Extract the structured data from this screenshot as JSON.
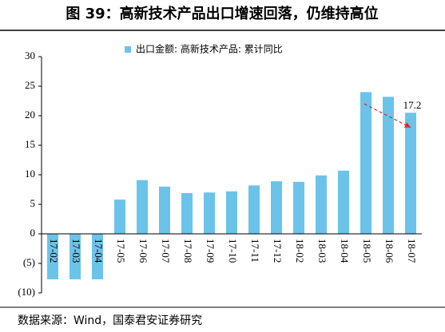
{
  "chart_data": {
    "type": "bar",
    "title": "图 39：高新技术产品出口增速回落，仍维持高位",
    "source": "数据来源：Wind，国泰君安证券研究",
    "categories": [
      "17-02",
      "17-03",
      "17-04",
      "17-05",
      "17-06",
      "17-07",
      "17-08",
      "17-09",
      "17-10",
      "17-11",
      "17-12",
      "18-02",
      "18-03",
      "18-04",
      "18-05",
      "18-06",
      "18-07"
    ],
    "series": [
      {
        "name": "出口金额: 高新技术产品: 累计同比",
        "color": "#6cc3ea",
        "values": [
          -7.7,
          -7.7,
          -7.7,
          5.8,
          9.1,
          8.0,
          6.9,
          7.0,
          7.2,
          8.2,
          8.9,
          8.8,
          9.9,
          10.7,
          24.0,
          23.2,
          20.5
        ]
      }
    ],
    "annotation": {
      "text": "17.2",
      "color": "#d9262c"
    },
    "ylim": [
      -10,
      30
    ],
    "yticks": [
      {
        "value": -10,
        "label": "(10)"
      },
      {
        "value": -5,
        "label": "(5)"
      },
      0,
      5,
      10,
      15,
      20,
      25,
      30
    ],
    "negative_tick_color": "#c00000",
    "legend": "top"
  }
}
